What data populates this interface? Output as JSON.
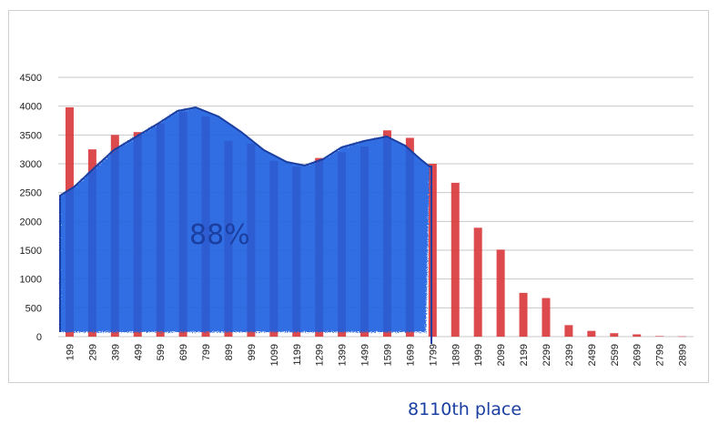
{
  "chart_data": {
    "type": "bar",
    "title": "",
    "xlabel": "",
    "ylabel": "",
    "ylim": [
      0,
      4500
    ],
    "yticks": [
      0,
      500,
      1000,
      1500,
      2000,
      2500,
      3000,
      3500,
      4000,
      4500
    ],
    "categories": [
      "199",
      "299",
      "399",
      "499",
      "599",
      "699",
      "799",
      "899",
      "999",
      "1099",
      "1199",
      "1299",
      "1399",
      "1499",
      "1599",
      "1699",
      "1799",
      "1899",
      "1999",
      "2099",
      "2199",
      "2299",
      "2399",
      "2499",
      "2599",
      "2699",
      "2799",
      "2899"
    ],
    "series": [
      {
        "color": "#d9363a",
        "values": [
          3980,
          3250,
          3500,
          3550,
          3700,
          3900,
          3820,
          3400,
          3350,
          3050,
          2950,
          3100,
          3200,
          3300,
          3580,
          3450,
          3000,
          2670,
          1890,
          1510,
          760,
          670,
          200,
          100,
          60,
          40,
          10,
          5
        ]
      }
    ],
    "grid": true,
    "legend": "none"
  },
  "annotations": {
    "percent_label": "88%",
    "place_label": "8110th place",
    "highlight_color": "#1f5fe0",
    "outline_color": "#1a3fa0"
  }
}
